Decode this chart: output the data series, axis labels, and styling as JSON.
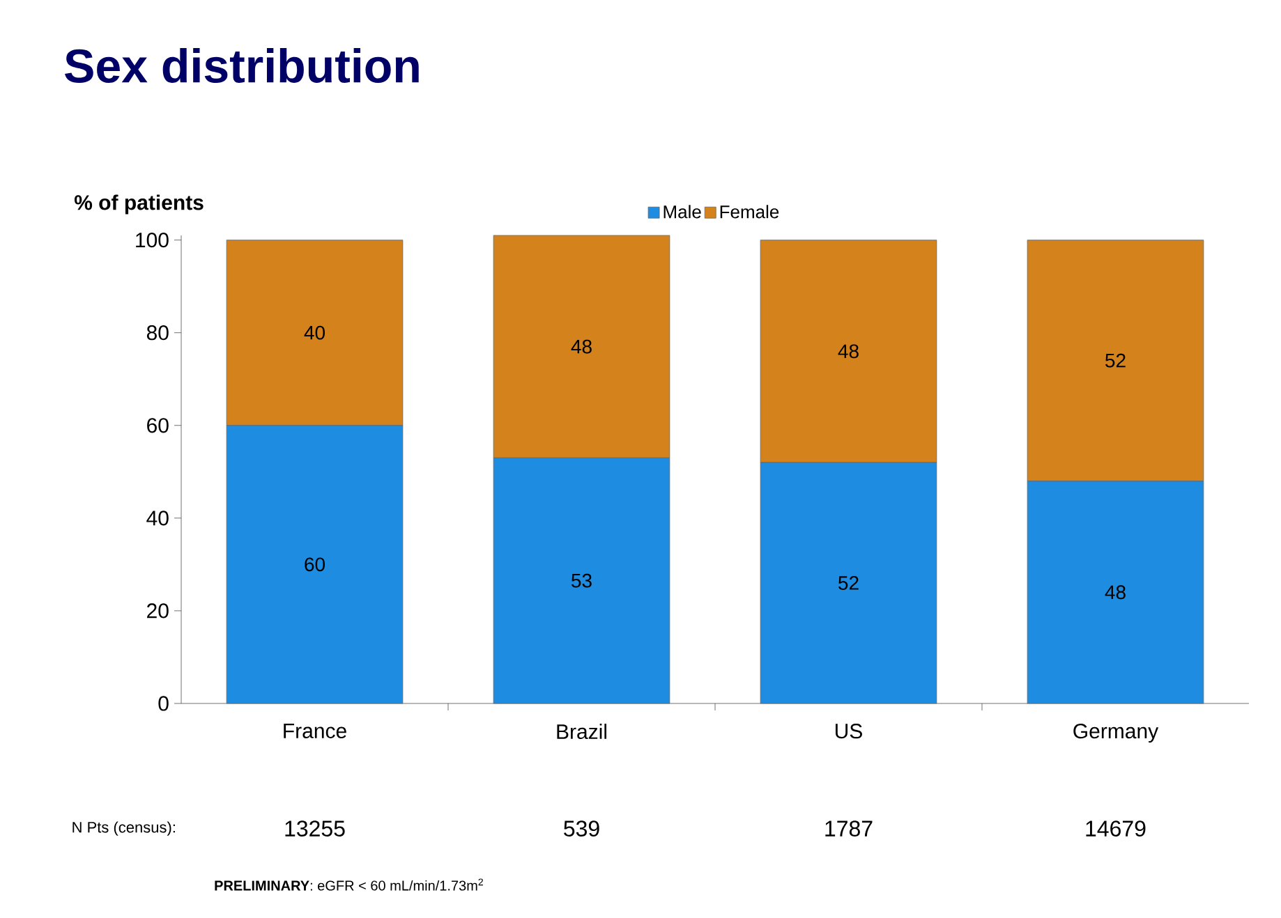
{
  "chart_data": {
    "type": "bar",
    "stacked": true,
    "title": "Sex distribution",
    "ylabel": "% of patients",
    "categories": [
      "France",
      "Brazil",
      "US",
      "Germany"
    ],
    "series": [
      {
        "name": "Male",
        "color": "#1e8ce0",
        "values": [
          60,
          53,
          52,
          48
        ]
      },
      {
        "name": "Female",
        "color": "#d4821c",
        "values": [
          40,
          48,
          48,
          52
        ]
      }
    ],
    "ylim": [
      0,
      101
    ],
    "yticks": [
      0,
      20,
      40,
      60,
      80,
      100
    ],
    "data_labels": true,
    "legend": "top",
    "grid": false,
    "annotations": [
      "N Pts (census):",
      "13255",
      "539",
      "1787",
      "14679",
      "**PRELIMINARY**: eGFR < 60 mL/min/1.73m$^{2}$"
    ]
  }
}
